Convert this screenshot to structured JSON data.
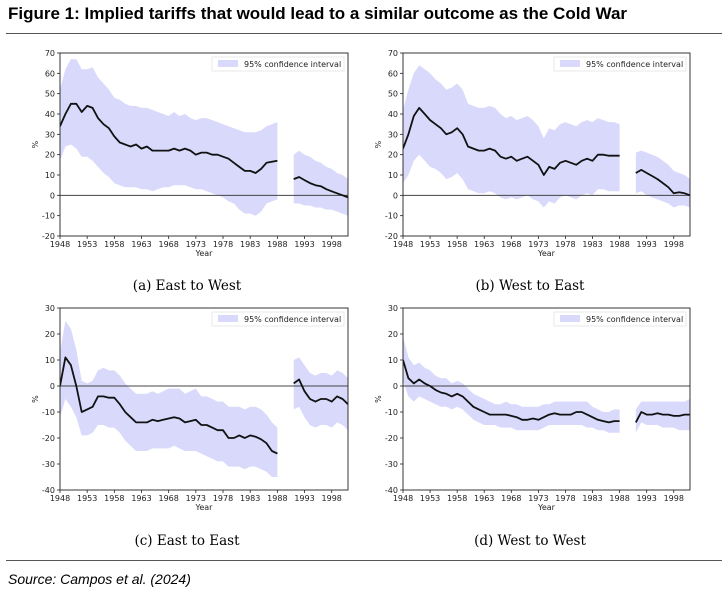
{
  "figure": {
    "title": "Figure 1: Implied tariffs that would lead to a similar outcome as the Cold War",
    "source": "Source: Campos et al. (2024)"
  },
  "colors": {
    "line": "#111111",
    "band": "#d9d9fb",
    "zero_line": "#444444",
    "legend_patch": "#d9d9fb"
  },
  "chart_data": [
    {
      "type": "line",
      "caption": "(a) East to West",
      "xlabel": "Year",
      "ylabel": "%",
      "xlim": [
        1948,
        2001
      ],
      "ylim": [
        -20,
        70
      ],
      "xticks": [
        1948,
        1953,
        1958,
        1963,
        1968,
        1973,
        1978,
        1983,
        1988,
        1993,
        1998
      ],
      "yticks": [
        -20,
        -10,
        0,
        10,
        20,
        30,
        40,
        50,
        60,
        70
      ],
      "legend": "95% confidence interval",
      "legend_position": "top-right",
      "segments": [
        {
          "x": [
            1948,
            1949,
            1950,
            1951,
            1952,
            1953,
            1954,
            1955,
            1956,
            1957,
            1958,
            1959,
            1960,
            1961,
            1962,
            1963,
            1964,
            1965,
            1966,
            1967,
            1968,
            1969,
            1970,
            1971,
            1972,
            1973,
            1974,
            1975,
            1976,
            1977,
            1978,
            1979,
            1980,
            1981,
            1982,
            1983,
            1984,
            1985,
            1986,
            1987,
            1988
          ],
          "y": [
            34,
            40,
            45,
            45,
            41,
            44,
            43,
            38,
            35,
            33,
            29,
            26,
            25,
            24,
            25,
            23,
            24,
            22,
            22,
            22,
            22,
            23,
            22,
            23,
            22,
            20,
            21,
            21,
            20,
            20,
            19,
            18,
            16,
            14,
            12,
            12,
            11,
            13,
            16,
            16.5,
            17
          ],
          "lower": [
            17,
            24,
            25,
            23,
            19,
            19,
            17,
            14,
            11,
            9,
            6,
            5,
            4,
            4,
            4,
            3,
            3,
            2,
            3,
            4,
            4,
            5,
            5,
            5,
            4,
            3,
            3,
            2,
            1,
            0,
            -1,
            -3,
            -4,
            -7,
            -9,
            -9,
            -10,
            -8,
            -4,
            -3,
            -2
          ],
          "upper": [
            52,
            62,
            67,
            67,
            62,
            62,
            63,
            58,
            55,
            52,
            48,
            47,
            45,
            44,
            44,
            43,
            43,
            42,
            41,
            40,
            39,
            41,
            39,
            40,
            38,
            37,
            38,
            38,
            37,
            36,
            35,
            34,
            33,
            32,
            31,
            31,
            31,
            32,
            34,
            35,
            36
          ]
        },
        {
          "x": [
            1991,
            1992,
            1993,
            1994,
            1995,
            1996,
            1997,
            1998,
            1999,
            2000,
            2001
          ],
          "y": [
            8,
            9,
            7.5,
            6,
            5,
            4.5,
            3,
            2,
            1,
            0,
            -1
          ],
          "lower": [
            -4,
            -4,
            -5,
            -5,
            -6,
            -6,
            -7,
            -7,
            -8,
            -9,
            -10
          ],
          "upper": [
            20,
            22,
            20,
            19,
            17,
            16,
            14,
            13,
            11,
            10,
            8
          ]
        }
      ]
    },
    {
      "type": "line",
      "caption": "(b) West to East",
      "xlabel": "Year",
      "ylabel": "%",
      "xlim": [
        1948,
        2001
      ],
      "ylim": [
        -20,
        70
      ],
      "xticks": [
        1948,
        1953,
        1958,
        1963,
        1968,
        1973,
        1978,
        1983,
        1988,
        1993,
        1998
      ],
      "yticks": [
        -20,
        -10,
        0,
        10,
        20,
        30,
        40,
        50,
        60,
        70
      ],
      "legend": "95% confidence interval",
      "legend_position": "top-right",
      "segments": [
        {
          "x": [
            1948,
            1949,
            1950,
            1951,
            1952,
            1953,
            1954,
            1955,
            1956,
            1957,
            1958,
            1959,
            1960,
            1961,
            1962,
            1963,
            1964,
            1965,
            1966,
            1967,
            1968,
            1969,
            1970,
            1971,
            1972,
            1973,
            1974,
            1975,
            1976,
            1977,
            1978,
            1979,
            1980,
            1981,
            1982,
            1983,
            1984,
            1985,
            1986,
            1987,
            1988
          ],
          "y": [
            23,
            30,
            39,
            43,
            40,
            37,
            35,
            33,
            30,
            31,
            33,
            30,
            24,
            23,
            22,
            22,
            23,
            22,
            19,
            18,
            19,
            17,
            18,
            19,
            17,
            15,
            10,
            14,
            13,
            16,
            17,
            16,
            15,
            17,
            18,
            17,
            20,
            20,
            19.5,
            19.5,
            19.5
          ],
          "lower": [
            6,
            10,
            17,
            20,
            17,
            14,
            13,
            11,
            8,
            9,
            11,
            8,
            3,
            2,
            1,
            1,
            2,
            1,
            -1,
            -2,
            -1,
            -2,
            -1,
            0,
            -2,
            -3,
            -6,
            -3,
            -4,
            -1,
            0,
            -1,
            -2,
            0,
            1,
            0,
            3,
            3,
            2,
            2,
            2
          ],
          "upper": [
            42,
            52,
            60,
            64,
            62,
            60,
            57,
            55,
            52,
            53,
            55,
            52,
            45,
            44,
            43,
            43,
            44,
            43,
            40,
            38,
            39,
            37,
            38,
            39,
            37,
            34,
            28,
            33,
            32,
            35,
            36,
            35,
            34,
            36,
            37,
            36,
            38,
            37,
            36,
            36,
            35
          ]
        },
        {
          "x": [
            1991,
            1992,
            1993,
            1994,
            1995,
            1996,
            1997,
            1998,
            1999,
            2000,
            2001
          ],
          "y": [
            11,
            12.5,
            11,
            9.5,
            8,
            6,
            4,
            1,
            1.5,
            1,
            0
          ],
          "lower": [
            1,
            2,
            0,
            -1,
            -2,
            -3,
            -4,
            -6,
            -5,
            -5,
            -6
          ],
          "upper": [
            21,
            22,
            21,
            20,
            19,
            17,
            15,
            12,
            11,
            10,
            8
          ]
        }
      ]
    },
    {
      "type": "line",
      "caption": "(c) East to East",
      "xlabel": "Year",
      "ylabel": "%",
      "xlim": [
        1948,
        2001
      ],
      "ylim": [
        -40,
        30
      ],
      "xticks": [
        1948,
        1953,
        1958,
        1963,
        1968,
        1973,
        1978,
        1983,
        1988,
        1993,
        1998
      ],
      "yticks": [
        -40,
        -30,
        -20,
        -10,
        0,
        10,
        20,
        30
      ],
      "legend": "95% confidence interval",
      "legend_position": "top-right",
      "segments": [
        {
          "x": [
            1948,
            1949,
            1950,
            1951,
            1952,
            1953,
            1954,
            1955,
            1956,
            1957,
            1958,
            1959,
            1960,
            1961,
            1962,
            1963,
            1964,
            1965,
            1966,
            1967,
            1968,
            1969,
            1970,
            1971,
            1972,
            1973,
            1974,
            1975,
            1976,
            1977,
            1978,
            1979,
            1980,
            1981,
            1982,
            1983,
            1984,
            1985,
            1986,
            1987,
            1988
          ],
          "y": [
            0,
            11,
            8,
            0,
            -10,
            -9,
            -8,
            -4,
            -4,
            -4.5,
            -4.5,
            -7,
            -10,
            -12,
            -14,
            -14,
            -14,
            -13,
            -13.5,
            -13,
            -12.5,
            -12,
            -12.5,
            -14,
            -13.5,
            -13,
            -15,
            -15,
            -16,
            -17,
            -17,
            -20,
            -20,
            -19,
            -20,
            -19,
            -19.5,
            -20.5,
            -22,
            -25,
            -26
          ],
          "lower": [
            -12,
            -5,
            -8,
            -12,
            -19,
            -19,
            -18,
            -15,
            -15,
            -16,
            -16,
            -18,
            -21,
            -23,
            -25,
            -25,
            -25,
            -24,
            -24,
            -24,
            -24,
            -23,
            -24,
            -25,
            -25,
            -25,
            -26,
            -27,
            -28,
            -29,
            -29,
            -31,
            -31,
            -31,
            -32,
            -31,
            -31,
            -32,
            -33,
            -35,
            -35
          ],
          "upper": [
            13,
            25,
            22,
            14,
            2,
            1,
            2,
            6,
            7,
            6,
            6,
            4,
            1,
            -1,
            -3,
            -3,
            -3,
            -2,
            -3,
            -2,
            -1,
            -1,
            -1,
            -3,
            -2,
            -1,
            -4,
            -4,
            -5,
            -6,
            -6,
            -8,
            -8,
            -8,
            -9,
            -8,
            -8,
            -9,
            -11,
            -14,
            -16
          ]
        },
        {
          "x": [
            1991,
            1992,
            1993,
            1994,
            1995,
            1996,
            1997,
            1998,
            1999,
            2000,
            2001
          ],
          "y": [
            1,
            2.5,
            -2,
            -5,
            -6,
            -5,
            -5,
            -6,
            -4,
            -5,
            -7
          ],
          "lower": [
            -9,
            -8,
            -12,
            -15,
            -16,
            -15,
            -15,
            -16,
            -14,
            -15,
            -17
          ],
          "upper": [
            10,
            11,
            8,
            5,
            4,
            5,
            5,
            4,
            6,
            5,
            3
          ]
        }
      ]
    },
    {
      "type": "line",
      "caption": "(d) West to West",
      "xlabel": "Year",
      "ylabel": "%",
      "xlim": [
        1948,
        2001
      ],
      "ylim": [
        -40,
        30
      ],
      "xticks": [
        1948,
        1953,
        1958,
        1963,
        1968,
        1973,
        1978,
        1983,
        1988,
        1993,
        1998
      ],
      "yticks": [
        -40,
        -30,
        -20,
        -10,
        0,
        10,
        20,
        30
      ],
      "legend": "95% confidence interval",
      "legend_position": "top-right",
      "segments": [
        {
          "x": [
            1948,
            1949,
            1950,
            1951,
            1952,
            1953,
            1954,
            1955,
            1956,
            1957,
            1958,
            1959,
            1960,
            1961,
            1962,
            1963,
            1964,
            1965,
            1966,
            1967,
            1968,
            1969,
            1970,
            1971,
            1972,
            1973,
            1974,
            1975,
            1976,
            1977,
            1978,
            1979,
            1980,
            1981,
            1982,
            1983,
            1984,
            1985,
            1986,
            1987,
            1988
          ],
          "y": [
            10,
            3,
            1,
            2.5,
            1,
            0,
            -1.5,
            -2.5,
            -3,
            -4,
            -3,
            -4,
            -6,
            -8,
            -9,
            -10,
            -11,
            -11,
            -11,
            -11,
            -11.5,
            -12,
            -13,
            -13,
            -12.5,
            -13,
            -12,
            -11,
            -10.5,
            -11,
            -11,
            -11,
            -10,
            -10,
            -11,
            -12,
            -13,
            -13.5,
            -14,
            -13.5,
            -13.5
          ],
          "lower": [
            2,
            -4,
            -6,
            -4,
            -5,
            -6,
            -7,
            -8,
            -8,
            -9,
            -8,
            -9,
            -11,
            -13,
            -14,
            -15,
            -15,
            -15,
            -16,
            -16,
            -16,
            -17,
            -17,
            -17,
            -17,
            -17,
            -16,
            -15,
            -15,
            -15,
            -15,
            -15,
            -15,
            -15,
            -16,
            -16,
            -17,
            -17,
            -18,
            -18,
            -18
          ],
          "upper": [
            19,
            11,
            8,
            9,
            7,
            6,
            4,
            3,
            3,
            1,
            2,
            1,
            -1,
            -3,
            -4,
            -5,
            -6,
            -7,
            -7,
            -6,
            -7,
            -7,
            -8,
            -8,
            -8,
            -8,
            -7,
            -7,
            -6,
            -6,
            -6,
            -6,
            -6,
            -6,
            -6,
            -8,
            -9,
            -10,
            -10,
            -9,
            -9
          ]
        },
        {
          "x": [
            1991,
            1992,
            1993,
            1994,
            1995,
            1996,
            1997,
            1998,
            1999,
            2000,
            2001
          ],
          "y": [
            -14,
            -10,
            -11,
            -11,
            -10.5,
            -11,
            -11,
            -11.5,
            -11.5,
            -11,
            -11
          ],
          "lower": [
            -18,
            -14,
            -15,
            -15,
            -15,
            -16,
            -16,
            -16,
            -17,
            -17,
            -17
          ],
          "upper": [
            -9,
            -6,
            -6,
            -6,
            -6,
            -6,
            -6,
            -6,
            -6,
            -6,
            -5
          ]
        }
      ]
    }
  ]
}
